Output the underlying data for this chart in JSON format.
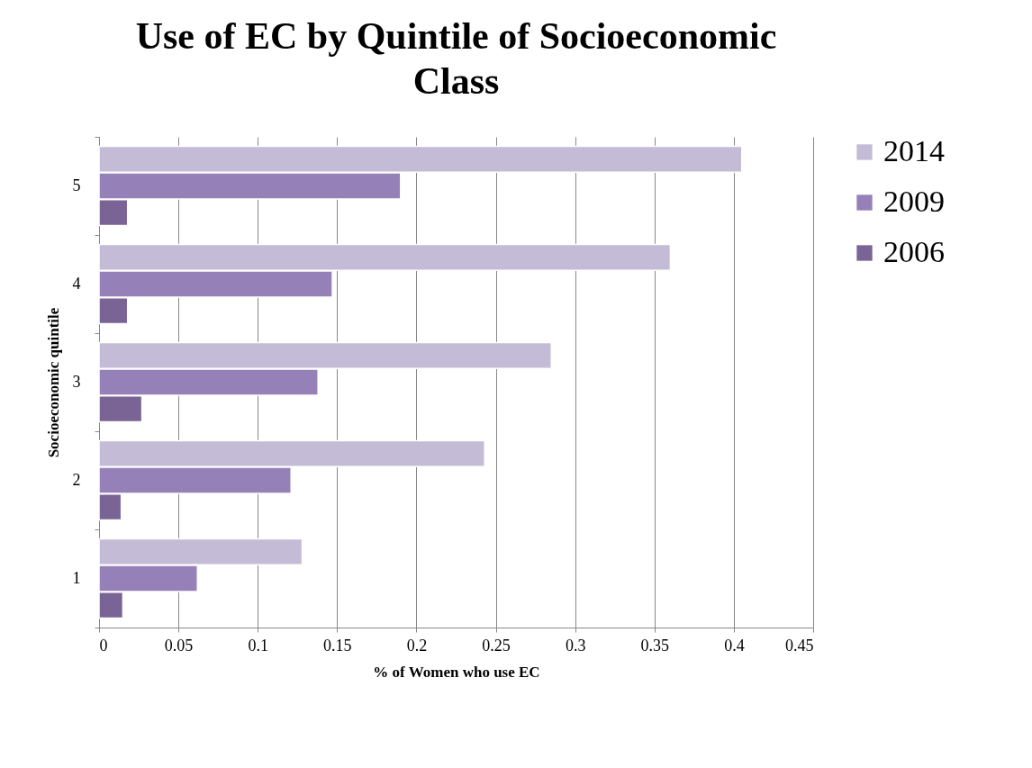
{
  "chart_data": {
    "type": "bar",
    "orientation": "horizontal",
    "title": "Use of EC by Quintile of Socioeconomic Class",
    "xlabel": "% of Women who use EC",
    "ylabel": "Socioeconomic quintile",
    "categories": [
      "5",
      "4",
      "3",
      "2",
      "1"
    ],
    "series": [
      {
        "name": "2014",
        "color": "#c4bcd6",
        "values": [
          0.405,
          0.36,
          0.285,
          0.243,
          0.128
        ]
      },
      {
        "name": "2009",
        "color": "#9680b8",
        "values": [
          0.19,
          0.147,
          0.138,
          0.121,
          0.062
        ]
      },
      {
        "name": "2006",
        "color": "#7a6496",
        "values": [
          0.018,
          0.018,
          0.027,
          0.014,
          0.015
        ]
      }
    ],
    "xlim": [
      0,
      0.45
    ],
    "xticks": [
      0,
      0.05,
      0.1,
      0.15,
      0.2,
      0.25,
      0.3,
      0.35,
      0.4,
      0.45
    ],
    "grid": "x",
    "legend": "right"
  }
}
